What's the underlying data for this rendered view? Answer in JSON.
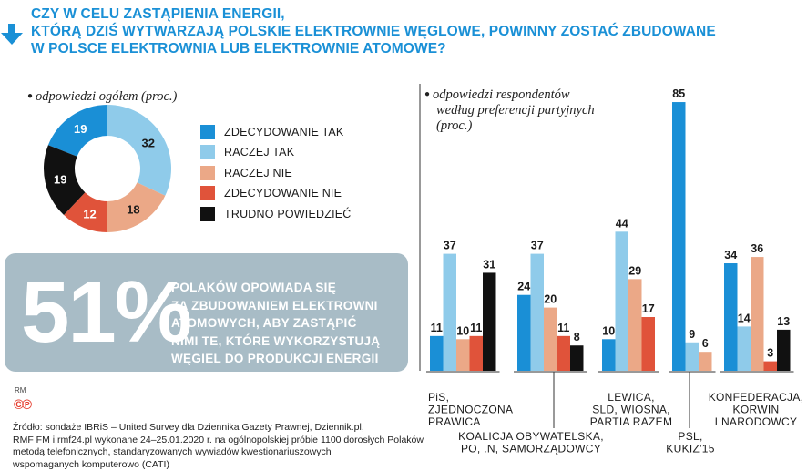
{
  "title": {
    "lines": [
      "CZY W CELU ZASTĄPIENIA ENERGII,",
      "KTÓRĄ DZIŚ WYTWARZAJĄ POLSKIE ELEKTROWNIE WĘGLOWE, POWINNY ZOSTAĆ ZBUDOWANE",
      "W POLSCE ELEKTROWNIA LUB ELEKTROWNIE  ATOMOWE?"
    ]
  },
  "left_panel": {
    "subtitle": "odpowiedzi ogółem (proc.)"
  },
  "right_panel": {
    "subtitle_lines": [
      "odpowiedzi respondentów",
      "według preferencji partyjnych",
      "(proc.)"
    ]
  },
  "colors": {
    "zdecydowanie_tak": "#1a8fd6",
    "raczej_tak": "#8fcbea",
    "raczej_nie": "#eba887",
    "zdecydowanie_nie": "#e0533a",
    "trudno": "#111111",
    "title": "#1a90d6",
    "box": "#a8bcc6"
  },
  "legend": [
    {
      "label": "ZDECYDOWANIE TAK",
      "color": "#1a8fd6"
    },
    {
      "label": "RACZEJ TAK",
      "color": "#8fcbea"
    },
    {
      "label": "RACZEJ NIE",
      "color": "#eba887"
    },
    {
      "label": "ZDECYDOWANIE NIE",
      "color": "#e0533a"
    },
    {
      "label": "TRUDNO POWIEDZIEĆ",
      "color": "#111111"
    }
  ],
  "stat": {
    "value": "51%",
    "lines": [
      "POLAKÓW OPOWIADA SIĘ",
      "ZA ZBUDOWANIEM ELEKTROWNI",
      "ATOMOWYCH, ABY ZASTĄPIĆ",
      "NIMI TE, KTÓRE WYKORZYSTUJĄ",
      "WĘGIEL DO PRODUKCJI ENERGII"
    ]
  },
  "rm_label": "RM",
  "cp_label": "©℗",
  "source_lines": [
    "Źródło: sondaże IBRiS – United Survey dla Dziennika Gazety Prawnej, Dziennik.pl,",
    "RMF FM i rmf24.pl wykonane 24–25.01.2020 r. na ogólnopolskiej próbie 1100 dorosłych Polaków",
    "metodą telefonicznych, standaryzowanych wywiadów kwestionariuszowych",
    "wspomaganych komputerowo (CATI)"
  ],
  "chart_data": [
    {
      "type": "pie",
      "title": "odpowiedzi ogółem (proc.)",
      "labels": [
        "ZDECYDOWANIE TAK",
        "RACZEJ TAK",
        "RACZEJ NIE",
        "ZDECYDOWANIE NIE",
        "TRUDNO POWIEDZIEĆ"
      ],
      "values": [
        19,
        32,
        18,
        12,
        19
      ],
      "colors": [
        "#1a8fd6",
        "#8fcbea",
        "#eba887",
        "#e0533a",
        "#111111"
      ]
    },
    {
      "type": "bar",
      "title": "odpowiedzi respondentów według preferencji partyjnych (proc.)",
      "ylim": [
        0,
        85
      ],
      "categories": [
        {
          "lines": [
            "PiS,",
            "ZJEDNOCZONA",
            "PRAWICA"
          ],
          "label_pos": "upper"
        },
        {
          "lines": [
            "KOALICJA OBYWATELSKA,",
            "PO, .N, SAMORZĄDOWCY"
          ],
          "label_pos": "lower"
        },
        {
          "lines": [
            "LEWICA,",
            "SLD, WIOSNA,",
            "PARTIA RAZEM"
          ],
          "label_pos": "upper"
        },
        {
          "lines": [
            "PSL,",
            "KUKIZ'15"
          ],
          "label_pos": "lower"
        },
        {
          "lines": [
            "KONFEDERACJA,",
            "KORWIN",
            "I NARODOWCY"
          ],
          "label_pos": "upper"
        }
      ],
      "series": [
        {
          "name": "ZDECYDOWANIE TAK",
          "color": "#1a8fd6",
          "values": [
            11,
            24,
            10,
            85,
            34
          ]
        },
        {
          "name": "RACZEJ TAK",
          "color": "#8fcbea",
          "values": [
            37,
            37,
            44,
            9,
            14
          ]
        },
        {
          "name": "RACZEJ NIE",
          "color": "#eba887",
          "values": [
            10,
            20,
            29,
            6,
            36
          ]
        },
        {
          "name": "ZDECYDOWANIE NIE",
          "color": "#e0533a",
          "values": [
            11,
            11,
            17,
            null,
            3
          ]
        },
        {
          "name": "TRUDNO POWIEDZIEĆ",
          "color": "#111111",
          "values": [
            31,
            8,
            null,
            null,
            13
          ]
        }
      ]
    }
  ]
}
